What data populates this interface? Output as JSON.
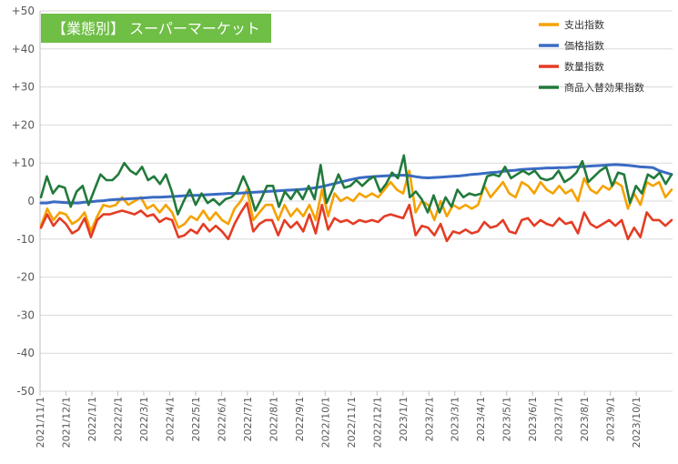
{
  "chart_data": {
    "type": "line",
    "title": "【業態別】 スーパーマーケット",
    "title_bg": "#6fbe45",
    "ylim": [
      -50,
      50
    ],
    "y_ticks": [
      50,
      40,
      30,
      20,
      10,
      0,
      -10,
      -20,
      -30,
      -40,
      -50
    ],
    "y_tick_labels": [
      "+50",
      "+40",
      "+30",
      "+20",
      "+10",
      "0",
      "-10",
      "-20",
      "-30",
      "-40",
      "-50"
    ],
    "x_tick_labels": [
      "2021/11/1",
      "2021/12/1",
      "2022/1/1",
      "2022/2/1",
      "2022/3/1",
      "2022/4/1",
      "2022/5/1",
      "2022/6/1",
      "2022/7/1",
      "2022/8/1",
      "2022/9/1",
      "2022/10/1",
      "2022/11/1",
      "2022/12/1",
      "2023/1/1",
      "2023/2/1",
      "2023/3/1",
      "2023/4/1",
      "2023/5/1",
      "2023/6/1",
      "2023/7/1",
      "2023/8/1",
      "2023/9/1",
      "2023/10/1"
    ],
    "grid": true,
    "legend_position": "top-right",
    "series": [
      {
        "name": "支出指数",
        "color": "#f5a200",
        "values": [
          -6.5,
          -2,
          -5,
          -3,
          -3.5,
          -6,
          -5,
          -3,
          -8,
          -4,
          -1,
          -1.5,
          -1,
          1,
          -1,
          0,
          1,
          -2,
          -1,
          -3,
          -1,
          -3,
          -7,
          -6,
          -4,
          -5,
          -2.5,
          -5,
          -3,
          -5,
          -6,
          -2,
          0,
          3,
          -5,
          -3,
          -1,
          -1,
          -5,
          -1,
          -4,
          -2,
          -4,
          -1,
          -5,
          3,
          -4,
          2,
          0,
          1,
          0,
          2,
          1,
          2,
          1,
          3,
          5,
          3,
          2,
          8,
          -3,
          0,
          -1,
          -5,
          0,
          -4,
          -1,
          -2,
          -1,
          -2,
          -1,
          4,
          1,
          3,
          5,
          2,
          1,
          5,
          4,
          2,
          5,
          3,
          2,
          4,
          2,
          3,
          0,
          6,
          3,
          2,
          4,
          3,
          5,
          4,
          -2,
          2,
          -1,
          5,
          4,
          5,
          1,
          3
        ]
      },
      {
        "name": "価格指数",
        "color": "#3a6bc4",
        "values": [
          -0.5,
          -0.5,
          -0.2,
          -0.3,
          -0.4,
          -0.5,
          -0.5,
          -0.3,
          -0.2,
          0,
          0.1,
          0.3,
          0.4,
          0.5,
          0.6,
          0.7,
          0.8,
          0.9,
          1,
          1,
          1.1,
          1.2,
          1.3,
          1.4,
          1.5,
          1.5,
          1.6,
          1.7,
          1.8,
          1.9,
          2,
          2,
          2.1,
          2.2,
          2.3,
          2.4,
          2.5,
          2.6,
          2.7,
          2.8,
          2.9,
          3,
          3.1,
          3.3,
          3.5,
          3.8,
          4.2,
          4.6,
          5,
          5.4,
          5.8,
          6.1,
          6.3,
          6.4,
          6.5,
          6.6,
          6.7,
          6.8,
          6.8,
          6.7,
          6.4,
          6.2,
          6.1,
          6.2,
          6.3,
          6.4,
          6.5,
          6.6,
          6.8,
          7,
          7.1,
          7.3,
          7.5,
          7.6,
          7.8,
          8,
          8.1,
          8.3,
          8.4,
          8.5,
          8.6,
          8.7,
          8.7,
          8.8,
          8.8,
          8.9,
          9,
          9.1,
          9.2,
          9.3,
          9.4,
          9.5,
          9.6,
          9.5,
          9.4,
          9.2,
          9,
          8.9,
          8.8,
          8,
          7.5,
          7
        ]
      },
      {
        "name": "数量指数",
        "color": "#e43c24",
        "values": [
          -7,
          -3.5,
          -6.5,
          -4.5,
          -6,
          -8.5,
          -7.5,
          -4.5,
          -9.5,
          -5,
          -3.5,
          -3.5,
          -3,
          -2.5,
          -3,
          -3.5,
          -2.5,
          -4,
          -3.5,
          -5.5,
          -4.5,
          -5,
          -9.5,
          -9,
          -7.5,
          -8.5,
          -6,
          -8,
          -6.5,
          -8,
          -10,
          -6,
          -3,
          -0.5,
          -8,
          -6,
          -5,
          -5,
          -9,
          -5,
          -7,
          -5.5,
          -8,
          -3.5,
          -8.5,
          -1,
          -7.5,
          -4.5,
          -5.5,
          -5,
          -6,
          -5,
          -5.5,
          -5,
          -5.5,
          -4,
          -3.5,
          -4,
          -4.5,
          -1,
          -9,
          -6.5,
          -7,
          -9,
          -6,
          -10.5,
          -8,
          -8.5,
          -7.5,
          -8.5,
          -8,
          -5.5,
          -7,
          -6.5,
          -5,
          -8,
          -8.5,
          -5,
          -4.5,
          -6.5,
          -5,
          -6,
          -6.5,
          -4.5,
          -6,
          -5.5,
          -8.5,
          -3,
          -6,
          -7,
          -6,
          -5,
          -6.5,
          -5,
          -10,
          -7,
          -9.5,
          -3,
          -5,
          -5,
          -6.5,
          -5
        ]
      },
      {
        "name": "商品入替効果指数",
        "color": "#217a3b",
        "values": [
          1,
          6.5,
          2,
          4,
          3.5,
          -1.5,
          2.5,
          4,
          -1,
          3,
          7,
          5.5,
          5.5,
          7,
          10,
          8,
          7,
          9,
          5.5,
          6.5,
          4.5,
          7,
          2.5,
          -3.5,
          0,
          3,
          -1,
          2,
          -0.5,
          0.5,
          -1,
          0.5,
          1,
          2.5,
          6.5,
          3,
          -2.5,
          0.5,
          4,
          4,
          -1.5,
          2.5,
          0.5,
          3,
          0.5,
          4,
          0.5,
          9.5,
          -0.5,
          3,
          7,
          3.5,
          4,
          5.5,
          4,
          5.5,
          6.5,
          2.5,
          4.5,
          7.5,
          6,
          12,
          1,
          2.5,
          0.5,
          -3,
          1.5,
          -3,
          1,
          -1.5,
          3,
          1,
          2,
          1.5,
          2,
          6.5,
          7,
          6.5,
          9,
          6,
          7,
          8,
          7,
          8,
          6,
          5.5,
          6,
          8,
          5,
          6,
          7.5,
          10.5,
          5,
          6.5,
          8,
          9,
          4,
          7.5,
          7,
          -0.5,
          4,
          2,
          7,
          6,
          7.5,
          4.5,
          7
        ]
      }
    ]
  }
}
